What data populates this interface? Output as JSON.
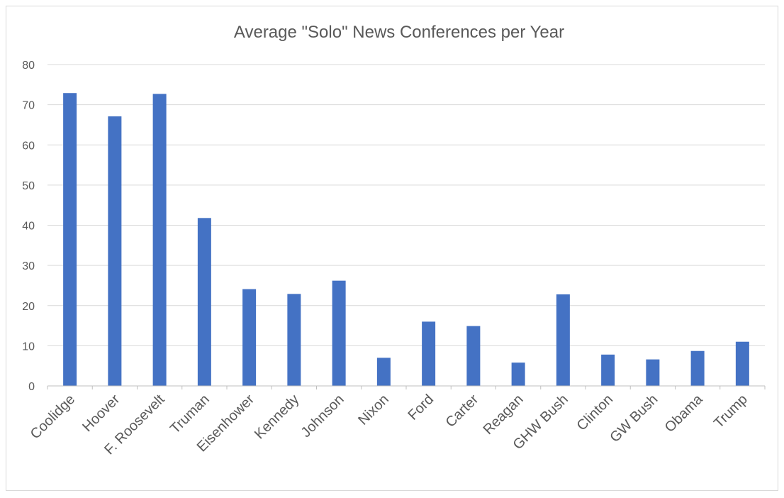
{
  "chart_data": {
    "type": "bar",
    "title": "Average \"Solo\" News Conferences per Year",
    "xlabel": "",
    "ylabel": "",
    "ylim": [
      0,
      80
    ],
    "yticks": [
      0,
      10,
      20,
      30,
      40,
      50,
      60,
      70,
      80
    ],
    "grid": true,
    "legend": "none",
    "bar_color": "#4472c4",
    "categories": [
      "Coolidge",
      "Hoover",
      "F. Roosevelt",
      "Truman",
      "Eisenhower",
      "Kennedy",
      "Johnson",
      "Nixon",
      "Ford",
      "Carter",
      "Reagan",
      "GHW Bush",
      "Clinton",
      "GW Bush",
      "Obama",
      "Trump"
    ],
    "values": [
      72.9,
      67.1,
      72.7,
      41.8,
      24.1,
      22.9,
      26.2,
      7.0,
      16.0,
      14.9,
      5.8,
      22.8,
      7.8,
      6.6,
      8.7,
      11.0
    ]
  }
}
